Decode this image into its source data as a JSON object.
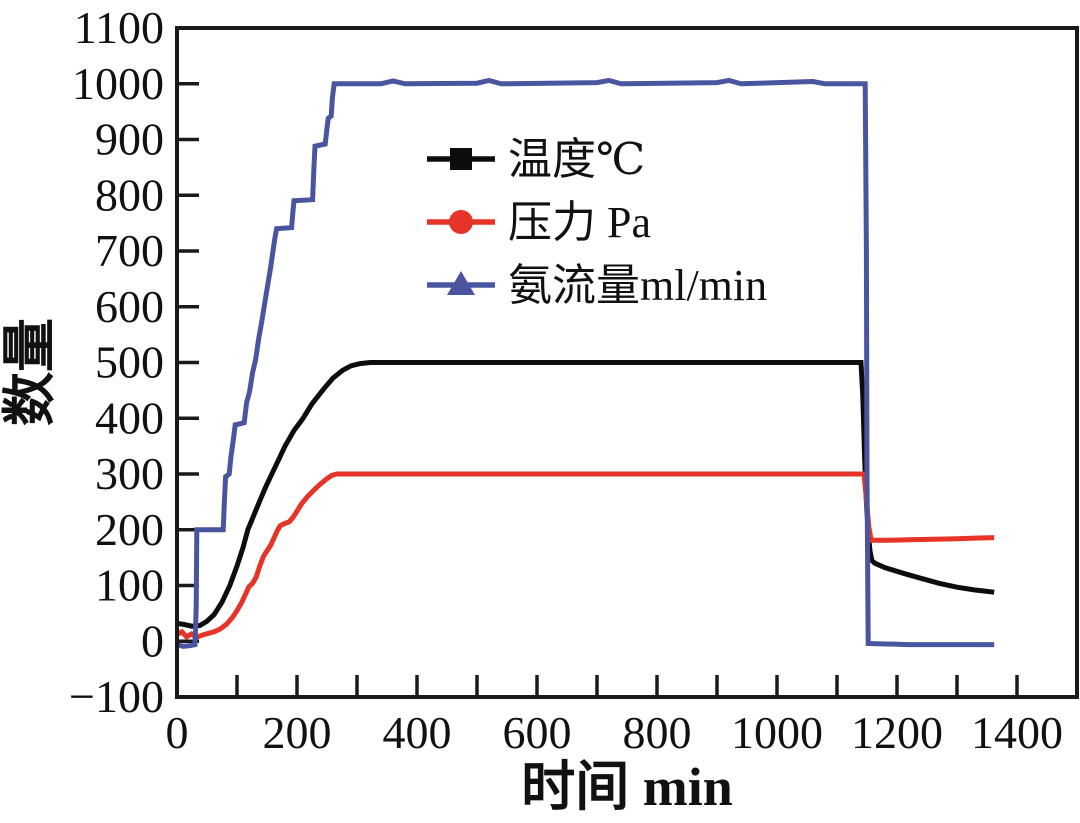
{
  "figure": {
    "background": "#ffffff",
    "axis_color": "#1a1a1a"
  },
  "chart_data": {
    "type": "line",
    "title": "",
    "xlabel": "时间 min",
    "ylabel": "数量",
    "xlim": [
      0,
      1500
    ],
    "ylim": [
      -100,
      1100
    ],
    "grid": false,
    "legend_position": "inside-upper-middle",
    "x_minor_tick_step": 100,
    "x_tick_values": [
      0,
      200,
      400,
      600,
      800,
      1000,
      1200,
      1400
    ],
    "x_tick_labels": [
      "0",
      "200",
      "400",
      "600",
      "800",
      "1000",
      "1200",
      "1400"
    ],
    "y_tick_values": [
      -100,
      0,
      100,
      200,
      300,
      400,
      500,
      600,
      700,
      800,
      900,
      1000,
      1100
    ],
    "y_tick_labels": [
      "−100",
      "0",
      "100",
      "200",
      "300",
      "400",
      "500",
      "600",
      "700",
      "800",
      "900",
      "1000",
      "1100"
    ],
    "series": [
      {
        "name": "温度℃",
        "color": "#0d0d0d",
        "marker": "square",
        "points": [
          [
            0,
            32
          ],
          [
            12,
            30
          ],
          [
            25,
            27
          ],
          [
            38,
            28
          ],
          [
            50,
            36
          ],
          [
            62,
            48
          ],
          [
            75,
            70
          ],
          [
            88,
            100
          ],
          [
            100,
            135
          ],
          [
            110,
            168
          ],
          [
            118,
            200
          ],
          [
            128,
            226
          ],
          [
            138,
            252
          ],
          [
            148,
            277
          ],
          [
            158,
            300
          ],
          [
            170,
            327
          ],
          [
            180,
            350
          ],
          [
            195,
            378
          ],
          [
            210,
            400
          ],
          [
            225,
            426
          ],
          [
            244,
            452
          ],
          [
            260,
            472
          ],
          [
            276,
            486
          ],
          [
            290,
            494
          ],
          [
            305,
            498
          ],
          [
            322,
            500
          ],
          [
            1140,
            500
          ],
          [
            1143,
            440
          ],
          [
            1146,
            330
          ],
          [
            1149,
            250
          ],
          [
            1152,
            195
          ],
          [
            1155,
            162
          ],
          [
            1158,
            145
          ],
          [
            1163,
            140
          ],
          [
            1180,
            132
          ],
          [
            1210,
            122
          ],
          [
            1240,
            113
          ],
          [
            1270,
            104
          ],
          [
            1300,
            97
          ],
          [
            1330,
            92
          ],
          [
            1362,
            88
          ]
        ]
      },
      {
        "name": "压力 Pa",
        "color": "#e63428",
        "marker": "circle",
        "points": [
          [
            0,
            12
          ],
          [
            8,
            17
          ],
          [
            16,
            8
          ],
          [
            24,
            13
          ],
          [
            32,
            7
          ],
          [
            42,
            11
          ],
          [
            52,
            14
          ],
          [
            62,
            17
          ],
          [
            72,
            22
          ],
          [
            82,
            30
          ],
          [
            92,
            42
          ],
          [
            100,
            55
          ],
          [
            108,
            70
          ],
          [
            114,
            84
          ],
          [
            120,
            98
          ],
          [
            126,
            104
          ],
          [
            132,
            115
          ],
          [
            138,
            135
          ],
          [
            144,
            152
          ],
          [
            150,
            162
          ],
          [
            156,
            172
          ],
          [
            162,
            186
          ],
          [
            167,
            198
          ],
          [
            172,
            207
          ],
          [
            179,
            211
          ],
          [
            187,
            214
          ],
          [
            194,
            223
          ],
          [
            201,
            235
          ],
          [
            208,
            247
          ],
          [
            218,
            260
          ],
          [
            228,
            271
          ],
          [
            238,
            281
          ],
          [
            248,
            290
          ],
          [
            257,
            297
          ],
          [
            266,
            300
          ],
          [
            1145,
            300
          ],
          [
            1149,
            255
          ],
          [
            1153,
            205
          ],
          [
            1157,
            181
          ],
          [
            1180,
            181
          ],
          [
            1220,
            182
          ],
          [
            1260,
            183
          ],
          [
            1300,
            184
          ],
          [
            1330,
            185
          ],
          [
            1362,
            186
          ]
        ]
      },
      {
        "name": "氨流量ml/min",
        "color": "#4a55a0",
        "marker": "triangle",
        "points": [
          [
            0,
            -6
          ],
          [
            10,
            -9
          ],
          [
            22,
            -8
          ],
          [
            30,
            -6
          ],
          [
            32,
            60
          ],
          [
            33,
            200
          ],
          [
            77,
            200
          ],
          [
            79,
            252
          ],
          [
            81,
            295
          ],
          [
            87,
            300
          ],
          [
            90,
            332
          ],
          [
            94,
            362
          ],
          [
            97,
            388
          ],
          [
            112,
            392
          ],
          [
            116,
            428
          ],
          [
            121,
            448
          ],
          [
            126,
            482
          ],
          [
            131,
            505
          ],
          [
            136,
            542
          ],
          [
            141,
            572
          ],
          [
            146,
            605
          ],
          [
            151,
            638
          ],
          [
            156,
            670
          ],
          [
            160,
            700
          ],
          [
            163,
            722
          ],
          [
            166,
            740
          ],
          [
            191,
            742
          ],
          [
            193,
            768
          ],
          [
            195,
            790
          ],
          [
            226,
            792
          ],
          [
            228,
            845
          ],
          [
            230,
            888
          ],
          [
            247,
            892
          ],
          [
            250,
            920
          ],
          [
            252,
            938
          ],
          [
            257,
            942
          ],
          [
            259,
            975
          ],
          [
            262,
            1000
          ],
          [
            340,
            1000
          ],
          [
            360,
            1005
          ],
          [
            380,
            1000
          ],
          [
            500,
            1001
          ],
          [
            520,
            1006
          ],
          [
            540,
            1000
          ],
          [
            700,
            1002
          ],
          [
            720,
            1006
          ],
          [
            740,
            1000
          ],
          [
            900,
            1002
          ],
          [
            920,
            1006
          ],
          [
            940,
            1000
          ],
          [
            1060,
            1004
          ],
          [
            1080,
            1000
          ],
          [
            1147,
            1000
          ],
          [
            1149,
            700
          ],
          [
            1150,
            300
          ],
          [
            1152,
            -4
          ],
          [
            1220,
            -6
          ],
          [
            1300,
            -6
          ],
          [
            1362,
            -6
          ]
        ]
      }
    ]
  }
}
